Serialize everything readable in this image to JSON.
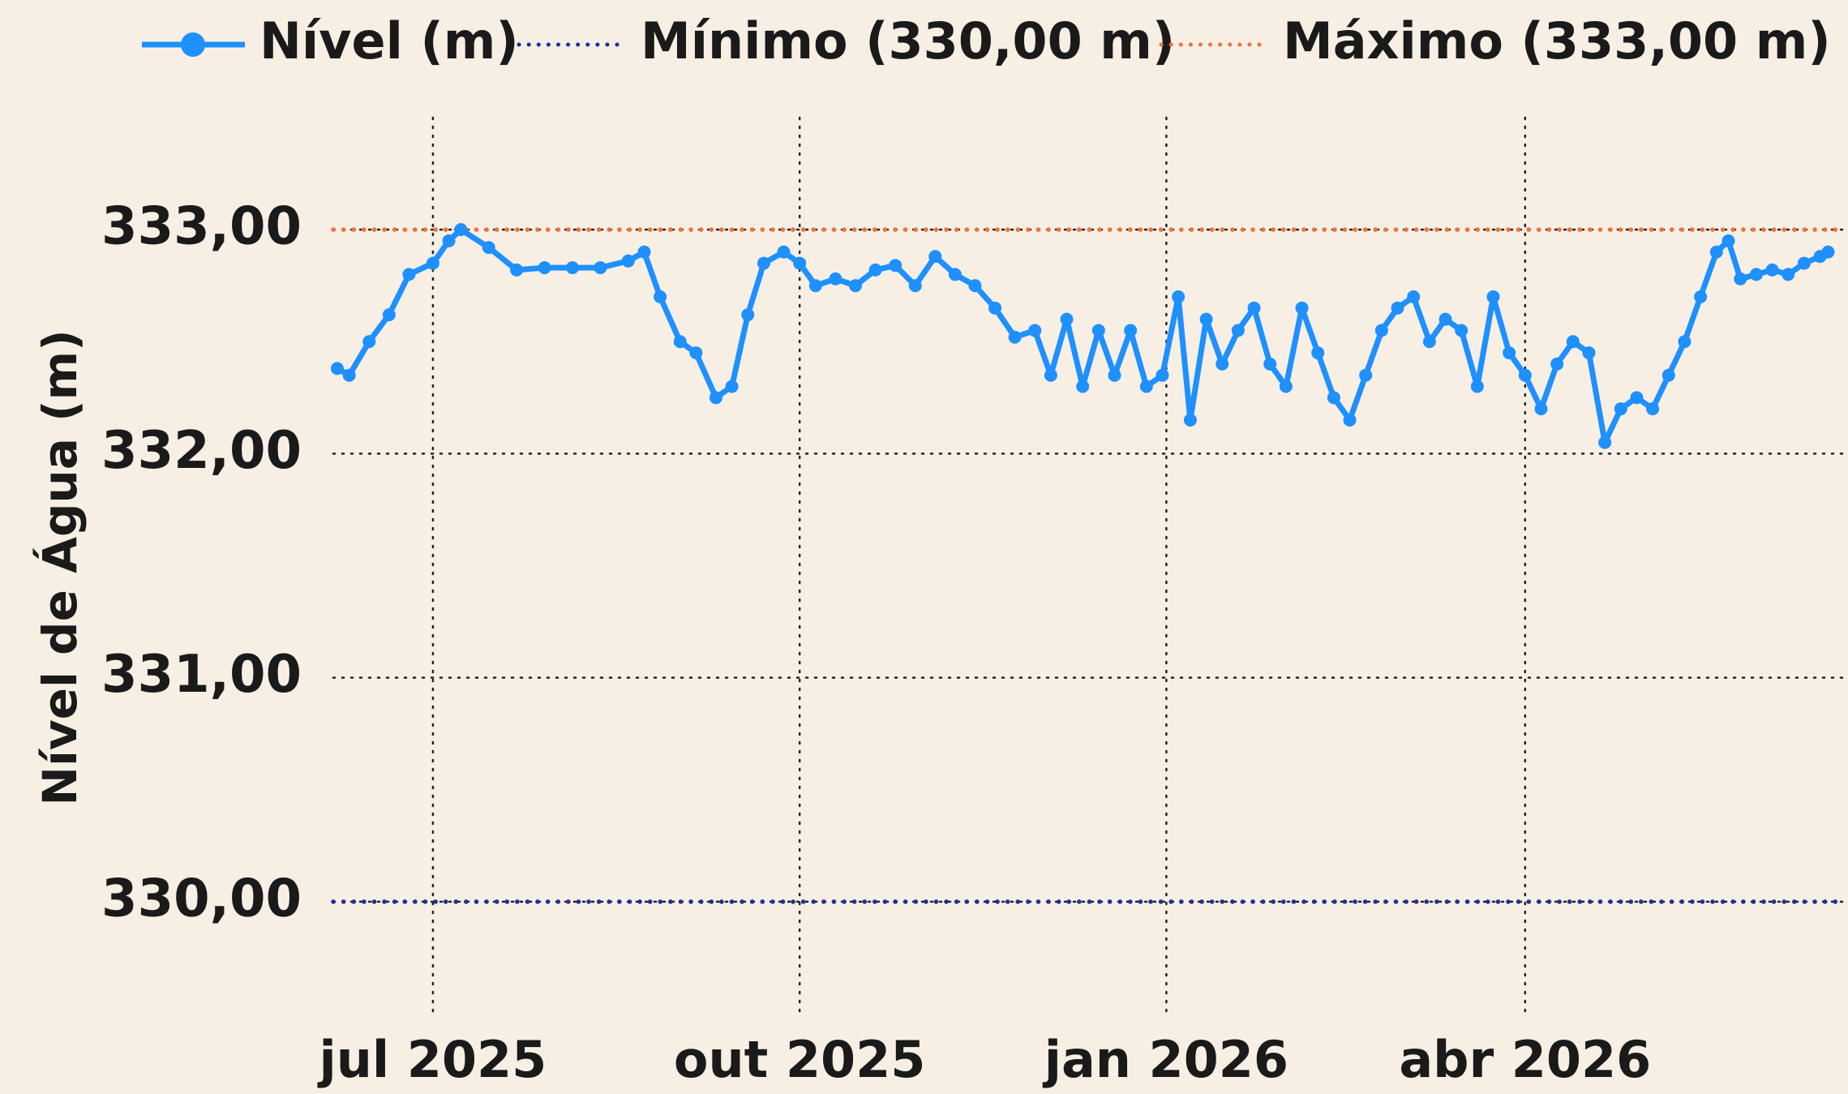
{
  "chart_data": {
    "type": "line",
    "y_label": "Nível de Água (m)",
    "x": [
      "2025-06-07",
      "2025-06-10",
      "2025-06-15",
      "2025-06-20",
      "2025-06-25",
      "2025-07-01",
      "2025-07-05",
      "2025-07-08",
      "2025-07-15",
      "2025-07-22",
      "2025-07-29",
      "2025-08-05",
      "2025-08-12",
      "2025-08-19",
      "2025-08-23",
      "2025-08-27",
      "2025-09-01",
      "2025-09-05",
      "2025-09-10",
      "2025-09-14",
      "2025-09-18",
      "2025-09-22",
      "2025-09-27",
      "2025-10-01",
      "2025-10-05",
      "2025-10-10",
      "2025-10-15",
      "2025-10-20",
      "2025-10-25",
      "2025-10-30",
      "2025-11-04",
      "2025-11-09",
      "2025-11-14",
      "2025-11-19",
      "2025-11-24",
      "2025-11-29",
      "2025-12-03",
      "2025-12-07",
      "2025-12-11",
      "2025-12-15",
      "2025-12-19",
      "2025-12-23",
      "2025-12-27",
      "2025-12-31",
      "2026-01-04",
      "2026-01-07",
      "2026-01-11",
      "2026-01-15",
      "2026-01-19",
      "2026-01-23",
      "2026-01-27",
      "2026-01-31",
      "2026-02-04",
      "2026-02-08",
      "2026-02-12",
      "2026-02-16",
      "2026-02-20",
      "2026-02-24",
      "2026-02-28",
      "2026-03-04",
      "2026-03-08",
      "2026-03-12",
      "2026-03-16",
      "2026-03-20",
      "2026-03-24",
      "2026-03-28",
      "2026-04-01",
      "2026-04-05",
      "2026-04-09",
      "2026-04-13",
      "2026-04-17",
      "2026-04-21",
      "2026-04-25",
      "2026-04-29",
      "2026-05-03",
      "2026-05-07",
      "2026-05-11",
      "2026-05-15",
      "2026-05-19",
      "2026-05-22",
      "2026-05-25",
      "2026-05-29",
      "2026-06-02",
      "2026-06-06",
      "2026-06-10",
      "2026-06-14",
      "2026-06-16"
    ],
    "series": [
      {
        "name": "Nível (m)",
        "color": "#1e90ff",
        "values": [
          332.38,
          332.35,
          332.5,
          332.62,
          332.8,
          332.85,
          332.95,
          333.0,
          332.92,
          332.82,
          332.83,
          332.83,
          332.83,
          332.86,
          332.9,
          332.7,
          332.5,
          332.45,
          332.25,
          332.3,
          332.62,
          332.85,
          332.9,
          332.85,
          332.75,
          332.78,
          332.75,
          332.82,
          332.84,
          332.75,
          332.88,
          332.8,
          332.75,
          332.65,
          332.52,
          332.55,
          332.35,
          332.6,
          332.3,
          332.55,
          332.35,
          332.55,
          332.3,
          332.35,
          332.7,
          332.15,
          332.6,
          332.4,
          332.55,
          332.65,
          332.4,
          332.3,
          332.65,
          332.45,
          332.25,
          332.15,
          332.35,
          332.55,
          332.65,
          332.7,
          332.5,
          332.6,
          332.55,
          332.3,
          332.7,
          332.45,
          332.35,
          332.2,
          332.4,
          332.5,
          332.45,
          332.05,
          332.2,
          332.25,
          332.2,
          332.35,
          332.5,
          332.7,
          332.9,
          332.95,
          332.78,
          332.8,
          332.82,
          332.8,
          332.85,
          332.88,
          332.9
        ]
      }
    ],
    "hlines": [
      {
        "name": "Mínimo (330,00 m)",
        "value": 330,
        "color": "#1f2f9e"
      },
      {
        "name": "Máximo (333,00 m)",
        "value": 333,
        "color": "#ec7340"
      }
    ],
    "xlim": [
      "2025-06-06",
      "2026-06-21"
    ],
    "xticks": [
      {
        "value": "2025-07-01",
        "label": "jul 2025"
      },
      {
        "value": "2025-10-01",
        "label": "out 2025"
      },
      {
        "value": "2026-01-01",
        "label": "jan 2026"
      },
      {
        "value": "2026-04-01",
        "label": "abr 2026"
      }
    ],
    "ylim": [
      329.5,
      333.5
    ],
    "yticks": [
      {
        "value": 330,
        "label": "330,00"
      },
      {
        "value": 331,
        "label": "331,00"
      },
      {
        "value": 332,
        "label": "332,00"
      },
      {
        "value": 333,
        "label": "333,00"
      }
    ],
    "grid": true,
    "legend": "top"
  }
}
